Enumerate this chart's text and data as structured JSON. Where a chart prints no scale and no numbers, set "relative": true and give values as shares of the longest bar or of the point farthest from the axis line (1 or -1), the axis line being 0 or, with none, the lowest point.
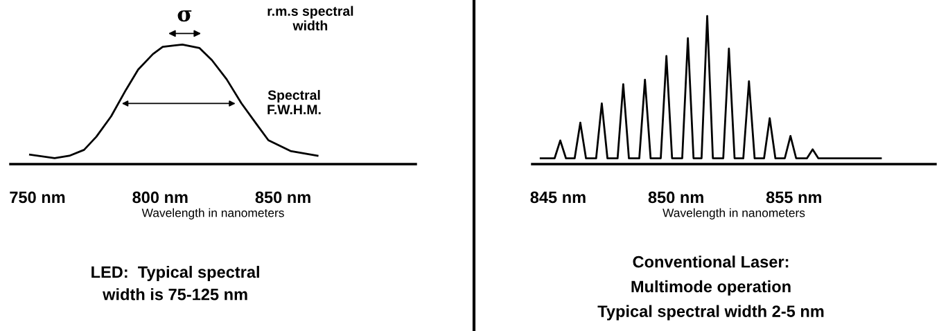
{
  "chart_data": [
    {
      "type": "line",
      "relative": true,
      "color": "#000000",
      "xlabel": "Wavelength in nanometers",
      "x": [
        747,
        757,
        763,
        769,
        774,
        780,
        786,
        791,
        797,
        801,
        809,
        816,
        821,
        827,
        833,
        839,
        844,
        853,
        864
      ],
      "values": [
        0.08,
        0.05,
        0.07,
        0.12,
        0.23,
        0.4,
        0.62,
        0.79,
        0.92,
        0.98,
        1.0,
        0.97,
        0.87,
        0.71,
        0.51,
        0.34,
        0.2,
        0.11,
        0.07
      ],
      "xlim": [
        739,
        904
      ],
      "xticks": [
        {
          "value": 750,
          "label": "750 nm"
        },
        {
          "value": 800,
          "label": "800 nm"
        },
        {
          "value": 850,
          "label": "850 nm"
        }
      ],
      "annotations": [
        "σ",
        "Spectral\nF.W.H.M.",
        "r.m.s spectral\nwidth",
        "LED:  Typical spectral\nwidth is 75-125 nm"
      ]
    },
    {
      "type": "line",
      "relative": true,
      "color": "#000000",
      "xlabel": "Wavelength in nanometers",
      "x": [
        844.26,
        844.85,
        845.09,
        845.33,
        845.7,
        845.94,
        846.18,
        846.61,
        846.85,
        847.09,
        847.52,
        847.76,
        848.0,
        848.44,
        848.68,
        848.92,
        849.35,
        849.59,
        849.83,
        850.26,
        850.5,
        850.74,
        851.08,
        851.32,
        851.56,
        852.0,
        852.24,
        852.48,
        852.85,
        853.09,
        853.33,
        853.73,
        853.97,
        854.21,
        854.61,
        854.85,
        855.09,
        855.55,
        855.79,
        856.03,
        858.68
      ],
      "values": [
        0.04,
        0.04,
        0.16,
        0.04,
        0.04,
        0.28,
        0.04,
        0.04,
        0.41,
        0.04,
        0.04,
        0.54,
        0.04,
        0.04,
        0.57,
        0.04,
        0.04,
        0.73,
        0.04,
        0.04,
        0.85,
        0.04,
        0.04,
        1.0,
        0.04,
        0.04,
        0.78,
        0.04,
        0.04,
        0.56,
        0.04,
        0.04,
        0.31,
        0.04,
        0.04,
        0.19,
        0.04,
        0.04,
        0.1,
        0.04,
        0.04
      ],
      "xlim": [
        843.9,
        861.0
      ],
      "xticks": [
        {
          "value": 845,
          "label": "845 nm"
        },
        {
          "value": 850,
          "label": "850 nm"
        },
        {
          "value": 855,
          "label": "855 nm"
        }
      ],
      "annotations": [
        "Conventional Laser:\nMultimode operation\nTypical spectral width 2-5 nm"
      ]
    }
  ]
}
